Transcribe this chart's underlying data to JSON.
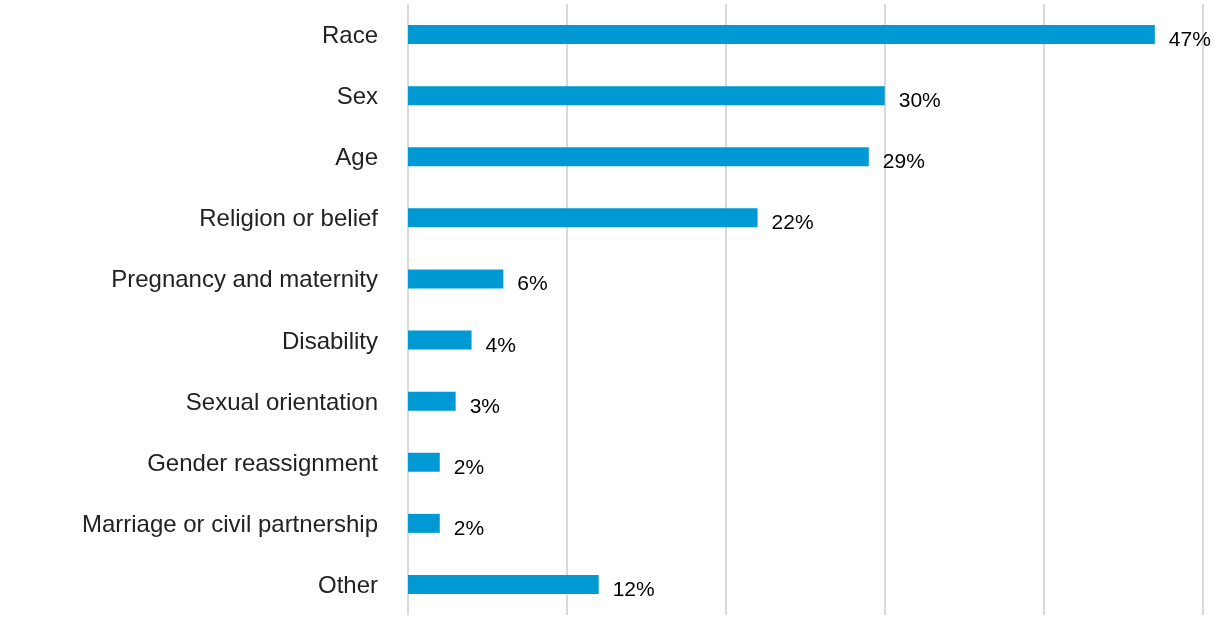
{
  "chart_data": {
    "type": "bar",
    "orientation": "horizontal",
    "categories": [
      "Race",
      "Sex",
      "Age",
      "Religion or belief",
      "Pregnancy and maternity",
      "Disability",
      "Sexual orientation",
      "Gender reassignment",
      "Marriage or civil partnership",
      "Other"
    ],
    "values": [
      47,
      30,
      29,
      22,
      6,
      4,
      3,
      2,
      2,
      12
    ],
    "value_labels": [
      "47%",
      "30%",
      "29%",
      "22%",
      "6%",
      "4%",
      "3%",
      "2%",
      "2%",
      "12%"
    ],
    "color": "#0099d4",
    "xlim": [
      0,
      50
    ],
    "xticks": [
      {
        "value": 0,
        "label": null
      },
      {
        "value": 10,
        "label": null
      },
      {
        "value": 20,
        "label": null
      },
      {
        "value": 30,
        "label": null
      },
      {
        "value": 40,
        "label": null
      },
      {
        "value": 50,
        "label": null
      }
    ],
    "grid": "x",
    "tick_labels": "y"
  }
}
